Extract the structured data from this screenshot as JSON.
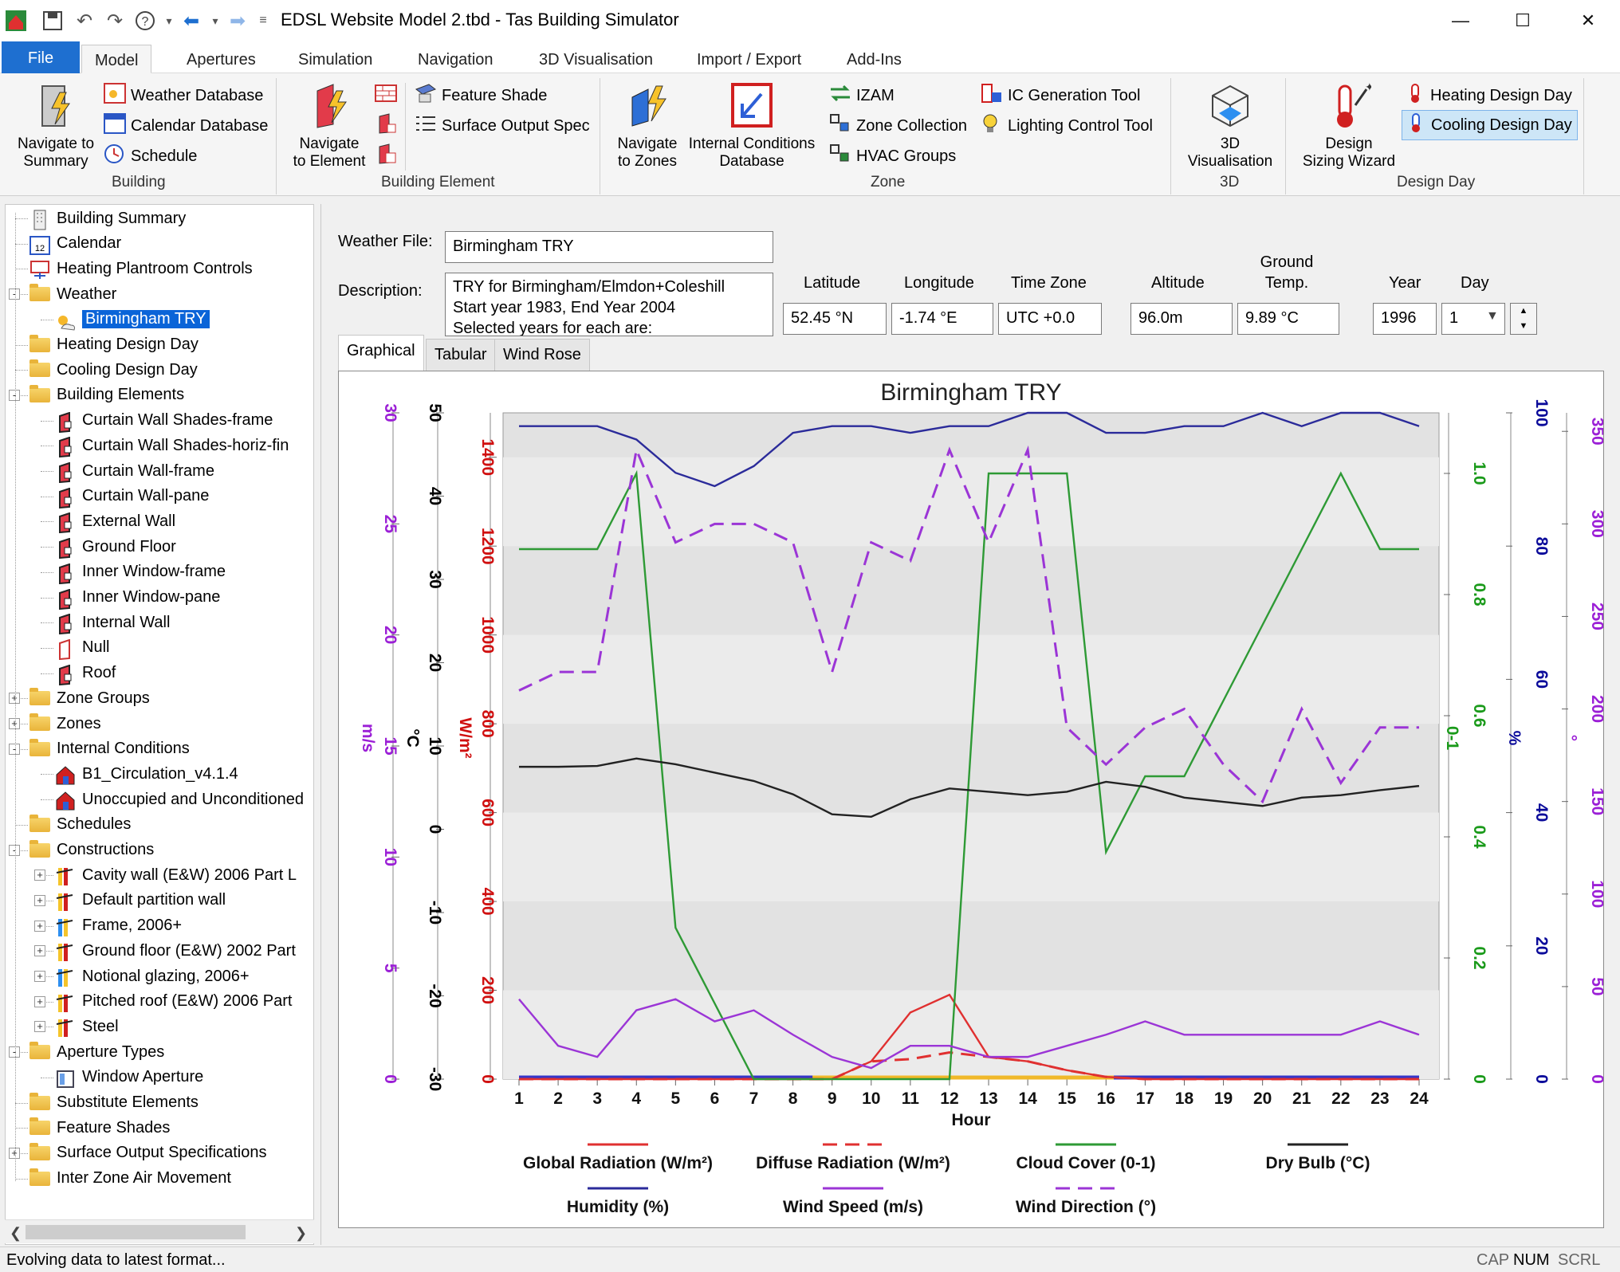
{
  "window": {
    "title": "EDSL Website Model 2.tbd - Tas Building Simulator"
  },
  "ribbon": {
    "tabs": [
      "File",
      "Model",
      "Apertures",
      "Simulation",
      "Navigation",
      "3D Visualisation",
      "Import / Export",
      "Add-Ins"
    ],
    "building": {
      "navigate_to_summary": "Navigate to\nSummary",
      "weather_database": "Weather Database",
      "calendar_database": "Calendar Database",
      "schedule": "Schedule",
      "group": "Building"
    },
    "building_element": {
      "navigate_to_element": "Navigate\nto Element",
      "feature_shade": "Feature Shade",
      "surface_output_spec": "Surface Output Spec",
      "group": "Building Element"
    },
    "zone": {
      "navigate_to_zones": "Navigate\nto Zones",
      "internal_conditions_database": "Internal Conditions\nDatabase",
      "izam": "IZAM",
      "zone_collection": "Zone Collection",
      "hvac_groups": "HVAC Groups",
      "ic_generation_tool": "IC Generation Tool",
      "lighting_control_tool": "Lighting Control Tool",
      "group": "Zone"
    },
    "three_d": {
      "visualisation": "3D\nVisualisation",
      "group": "3D"
    },
    "design_day": {
      "design_sizing_wizard": "Design\nSizing Wizard",
      "heating_design_day": "Heating Design Day",
      "cooling_design_day": "Cooling Design Day",
      "group": "Design Day"
    }
  },
  "tree": [
    {
      "label": "Building Summary",
      "level": 1,
      "icon": "building-summary-icon"
    },
    {
      "label": "Calendar",
      "level": 1,
      "icon": "calendar-icon"
    },
    {
      "label": "Heating Plantroom Controls",
      "level": 1,
      "icon": "plantroom-icon"
    },
    {
      "label": "Weather",
      "level": 1,
      "icon": "folder-icon",
      "expand": "-"
    },
    {
      "label": "Birmingham TRY",
      "level": 2,
      "icon": "weather-icon",
      "selected": true
    },
    {
      "label": "Heating Design Day",
      "level": 1,
      "icon": "folder-icon"
    },
    {
      "label": "Cooling Design Day",
      "level": 1,
      "icon": "folder-icon"
    },
    {
      "label": "Building Elements",
      "level": 1,
      "icon": "folder-icon",
      "expand": "-"
    },
    {
      "label": "Curtain Wall Shades-frame",
      "level": 2,
      "icon": "element-icon"
    },
    {
      "label": "Curtain Wall Shades-horiz-fin",
      "level": 2,
      "icon": "element-icon"
    },
    {
      "label": "Curtain Wall-frame",
      "level": 2,
      "icon": "element-icon"
    },
    {
      "label": "Curtain Wall-pane",
      "level": 2,
      "icon": "element-icon"
    },
    {
      "label": "External Wall",
      "level": 2,
      "icon": "element-icon"
    },
    {
      "label": "Ground Floor",
      "level": 2,
      "icon": "element-icon"
    },
    {
      "label": "Inner Window-frame",
      "level": 2,
      "icon": "element-icon"
    },
    {
      "label": "Inner Window-pane",
      "level": 2,
      "icon": "element-icon"
    },
    {
      "label": "Internal Wall",
      "level": 2,
      "icon": "element-icon"
    },
    {
      "label": "Null",
      "level": 2,
      "icon": "null-element-icon"
    },
    {
      "label": "Roof",
      "level": 2,
      "icon": "element-icon"
    },
    {
      "label": "Zone Groups",
      "level": 1,
      "icon": "folder-icon",
      "expand": "+"
    },
    {
      "label": "Zones",
      "level": 1,
      "icon": "folder-icon",
      "expand": "+"
    },
    {
      "label": "Internal Conditions",
      "level": 1,
      "icon": "folder-icon",
      "expand": "-"
    },
    {
      "label": "B1_Circulation_v4.1.4",
      "level": 2,
      "icon": "ic-house-icon"
    },
    {
      "label": "Unoccupied and Unconditioned",
      "level": 2,
      "icon": "ic-house-icon"
    },
    {
      "label": "Schedules",
      "level": 1,
      "icon": "folder-icon"
    },
    {
      "label": "Constructions",
      "level": 1,
      "icon": "folder-icon",
      "expand": "-"
    },
    {
      "label": "Cavity wall (E&W) 2006 Part L",
      "level": 2,
      "icon": "construction-icon",
      "expand": "+"
    },
    {
      "label": "Default partition wall",
      "level": 2,
      "icon": "construction-icon",
      "expand": "+"
    },
    {
      "label": "Frame, 2006+",
      "level": 2,
      "icon": "glazing-construction-icon",
      "expand": "+"
    },
    {
      "label": "Ground floor (E&W) 2002 Part",
      "level": 2,
      "icon": "construction-icon",
      "expand": "+"
    },
    {
      "label": "Notional glazing, 2006+",
      "level": 2,
      "icon": "glazing-construction-icon",
      "expand": "+"
    },
    {
      "label": "Pitched roof (E&W) 2006 Part",
      "level": 2,
      "icon": "construction-icon",
      "expand": "+"
    },
    {
      "label": "Steel",
      "level": 2,
      "icon": "construction-icon",
      "expand": "+"
    },
    {
      "label": "Aperture Types",
      "level": 1,
      "icon": "folder-icon",
      "expand": "-"
    },
    {
      "label": "Window Aperture",
      "level": 2,
      "icon": "aperture-icon"
    },
    {
      "label": "Substitute Elements",
      "level": 1,
      "icon": "folder-icon"
    },
    {
      "label": "Feature Shades",
      "level": 1,
      "icon": "folder-icon"
    },
    {
      "label": "Surface Output Specifications",
      "level": 1,
      "icon": "folder-icon",
      "expand": "+"
    },
    {
      "label": "Inter Zone Air Movement",
      "level": 1,
      "icon": "folder-icon"
    }
  ],
  "weather": {
    "file_label": "Weather File:",
    "file_value": "Birmingham TRY",
    "description_label": "Description:",
    "description_value": "TRY for Birmingham/Elmdon+Coleshill\nStart year 1983, End Year 2004\nSelected years for each are:",
    "latitude_label": "Latitude",
    "latitude_value": "52.45 °N",
    "longitude_label": "Longitude",
    "longitude_value": "-1.74 °E",
    "timezone_label": "Time Zone",
    "timezone_value": "UTC +0.0",
    "altitude_label": "Altitude",
    "altitude_value": "96.0m",
    "ground_label": "Ground\nTemp.",
    "ground_value": "9.89 °C",
    "year_label": "Year",
    "year_value": "1996",
    "day_label": "Day",
    "day_value": "1"
  },
  "view_tabs": [
    "Graphical",
    "Tabular",
    "Wind Rose"
  ],
  "status": {
    "message": "Evolving data to latest format...",
    "indicators": [
      "CAP",
      "NUM",
      "SCRL"
    ]
  },
  "colors": {
    "global": "#e03030",
    "diffuse": "#e03030",
    "cloud": "#2e9a35",
    "drybulb": "#222222",
    "humidity": "#2b2b9a",
    "windspeed": "#9b35d6",
    "winddir": "#9b35d6",
    "ms_axis": "#9b1fd6",
    "c_axis": "#000000",
    "wm2_axis": "#d01010",
    "cloud_axis": "#1a9a1a",
    "hum_axis": "#0a0a9a",
    "deg_axis": "#9b1fd6"
  },
  "chart_data": {
    "type": "line",
    "title": "Birmingham TRY",
    "xlabel": "Hour",
    "x": [
      1,
      2,
      3,
      4,
      5,
      6,
      7,
      8,
      9,
      10,
      11,
      12,
      13,
      14,
      15,
      16,
      17,
      18,
      19,
      20,
      21,
      22,
      23,
      24
    ],
    "xlim": [
      1,
      24
    ],
    "axes": {
      "ms": {
        "label": "m/s",
        "ticks": [
          0,
          5,
          10,
          15,
          20,
          25,
          30
        ],
        "range": [
          0,
          30
        ]
      },
      "c": {
        "label": "°C",
        "ticks": [
          -30,
          -20,
          -10,
          0,
          10,
          20,
          30,
          40,
          50
        ],
        "range": [
          -30,
          50
        ]
      },
      "wm2": {
        "label": "W/m²",
        "ticks": [
          0,
          200,
          400,
          600,
          800,
          1000,
          1200,
          1400
        ],
        "range": [
          0,
          1500
        ]
      },
      "cloud": {
        "label": "0-1",
        "ticks": [
          0,
          0.2,
          0.4,
          0.6,
          0.8,
          1.0
        ],
        "range": [
          0,
          1.1
        ]
      },
      "hum": {
        "label": "%",
        "ticks": [
          0,
          20,
          40,
          60,
          80,
          100
        ],
        "range": [
          0,
          100
        ]
      },
      "deg": {
        "label": "°",
        "ticks": [
          0,
          50,
          100,
          150,
          200,
          250,
          300,
          350
        ],
        "range": [
          0,
          360
        ]
      }
    },
    "series": [
      {
        "name": "Global Radiation (W/m²)",
        "axis": "wm2",
        "style": "solid",
        "color_key": "global",
        "values": [
          0,
          0,
          0,
          0,
          0,
          0,
          0,
          0,
          0,
          40,
          150,
          190,
          50,
          40,
          20,
          5,
          0,
          0,
          0,
          0,
          0,
          0,
          0,
          0
        ]
      },
      {
        "name": "Diffuse Radiation (W/m²)",
        "axis": "wm2",
        "style": "dashed",
        "color_key": "diffuse",
        "values": [
          0,
          0,
          0,
          0,
          0,
          0,
          0,
          0,
          0,
          40,
          45,
          60,
          50,
          40,
          20,
          5,
          0,
          0,
          0,
          0,
          0,
          0,
          0,
          0
        ]
      },
      {
        "name": "Cloud Cover (0-1)",
        "axis": "cloud",
        "style": "solid",
        "color_key": "cloud",
        "values": [
          0.875,
          0.875,
          0.875,
          1.0,
          0.25,
          0.125,
          0,
          0,
          0,
          0,
          0,
          0,
          1.0,
          1.0,
          1.0,
          0.375,
          0.5,
          0.5,
          0.625,
          0.75,
          0.875,
          1.0,
          0.875,
          0.875
        ]
      },
      {
        "name": "Dry Bulb (°C)",
        "axis": "c",
        "style": "solid",
        "color_key": "drybulb",
        "values": [
          7.5,
          7.5,
          7.6,
          8.5,
          7.8,
          6.8,
          5.8,
          4.2,
          1.8,
          1.5,
          3.6,
          4.9,
          4.5,
          4.1,
          4.5,
          5.7,
          5.1,
          3.8,
          3.3,
          2.8,
          3.8,
          4.1,
          4.7,
          5.2
        ]
      },
      {
        "name": "Humidity (%)",
        "axis": "hum",
        "style": "solid",
        "color_key": "humidity",
        "values": [
          98,
          98,
          98,
          96,
          91,
          89,
          92,
          97,
          98,
          98,
          97,
          98,
          98,
          100,
          100,
          97,
          97,
          98,
          98,
          100,
          98,
          100,
          100,
          98
        ]
      },
      {
        "name": "Wind Speed (m/s)",
        "axis": "ms",
        "style": "solid",
        "color_key": "windspeed",
        "values": [
          3.6,
          1.5,
          1.0,
          3.1,
          3.6,
          2.6,
          3.1,
          2.0,
          1.0,
          0.5,
          1.5,
          1.5,
          1.0,
          1.0,
          1.5,
          2.0,
          2.6,
          2.0,
          2.0,
          2.0,
          2.0,
          2.0,
          2.6,
          2.0
        ]
      },
      {
        "name": "Wind Direction (°)",
        "axis": "deg",
        "style": "dashed",
        "color_key": "winddir",
        "values": [
          210,
          220,
          220,
          340,
          290,
          300,
          300,
          290,
          220,
          290,
          280,
          340,
          290,
          340,
          190,
          170,
          190,
          200,
          170,
          150,
          200,
          160,
          190,
          190
        ]
      }
    ],
    "legend_position": "bottom",
    "grid": false
  }
}
